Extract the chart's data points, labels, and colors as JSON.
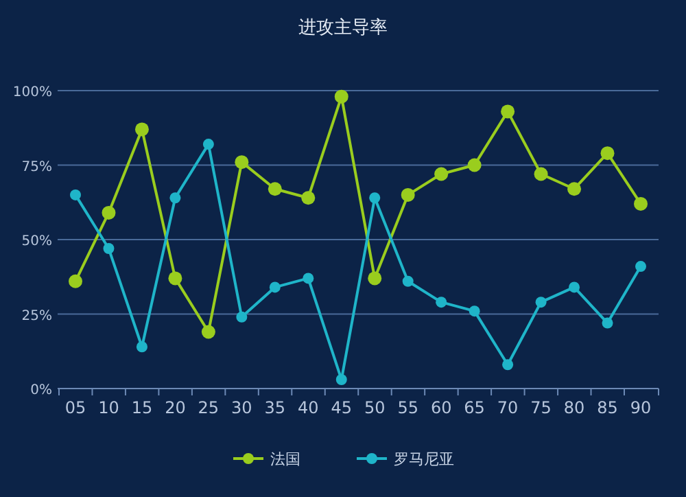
{
  "chart_data": {
    "type": "line",
    "title": "进攻主导率",
    "categories": [
      "05",
      "10",
      "15",
      "20",
      "25",
      "30",
      "35",
      "40",
      "45",
      "50",
      "55",
      "60",
      "65",
      "70",
      "75",
      "80",
      "85",
      "90"
    ],
    "series": [
      {
        "name": "法国",
        "color": "#9acd1e",
        "values": [
          36,
          59,
          87,
          37,
          19,
          76,
          67,
          64,
          98,
          37,
          65,
          72,
          75,
          93,
          72,
          67,
          79,
          62
        ]
      },
      {
        "name": "罗马尼亚",
        "color": "#1fb5c9",
        "values": [
          65,
          47,
          14,
          64,
          82,
          24,
          34,
          37,
          3,
          64,
          36,
          29,
          26,
          8,
          29,
          34,
          22,
          41
        ]
      }
    ],
    "ylim": [
      0,
      100
    ],
    "yticks": [
      {
        "value": 0,
        "label": "0%"
      },
      {
        "value": 25,
        "label": "25%"
      },
      {
        "value": 50,
        "label": "50%"
      },
      {
        "value": 75,
        "label": "75%"
      },
      {
        "value": 100,
        "label": "100%"
      }
    ],
    "grid": "y",
    "legend": "bottom",
    "marker": "circle",
    "line_style": "solid"
  }
}
